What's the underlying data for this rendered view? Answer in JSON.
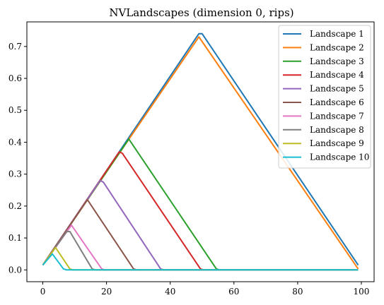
{
  "chart_data": {
    "type": "line",
    "title": "NVLandscapes (dimension 0, rips)",
    "xlabel": "",
    "ylabel": "",
    "xlim": [
      -5,
      104
    ],
    "ylim": [
      -0.037,
      0.777
    ],
    "xticks": [
      0,
      20,
      40,
      60,
      80,
      100
    ],
    "yticks": [
      0.0,
      0.1,
      0.2,
      0.3,
      0.4,
      0.5,
      0.6,
      0.7
    ],
    "ytick_labels": [
      "0.0",
      "0.1",
      "0.2",
      "0.3",
      "0.4",
      "0.5",
      "0.6",
      "0.7"
    ],
    "grid": false,
    "legend_position": "top-right",
    "series": [
      {
        "name": "Landscape 1",
        "color": "#1f77b4",
        "x": [
          0,
          49,
          50,
          99
        ],
        "y": [
          0.015,
          0.74,
          0.74,
          0.015
        ]
      },
      {
        "name": "Landscape 2",
        "color": "#ff7f0e",
        "x": [
          0,
          49,
          99
        ],
        "y": [
          0.015,
          0.73,
          0.003
        ]
      },
      {
        "name": "Landscape 3",
        "color": "#2ca02c",
        "x": [
          0,
          27,
          54.5,
          55.5,
          99
        ],
        "y": [
          0.015,
          0.41,
          0.003,
          0.0,
          0.0
        ]
      },
      {
        "name": "Landscape 4",
        "color": "#d62728",
        "x": [
          0,
          24,
          25,
          49.5,
          50.5,
          99
        ],
        "y": [
          0.015,
          0.37,
          0.365,
          0.003,
          0.0,
          0.0
        ]
      },
      {
        "name": "Landscape 5",
        "color": "#9467bd",
        "x": [
          0,
          18,
          19,
          37,
          38,
          99
        ],
        "y": [
          0.015,
          0.28,
          0.275,
          0.003,
          0.0,
          0.0
        ]
      },
      {
        "name": "Landscape 6",
        "color": "#8c564b",
        "x": [
          0,
          14,
          28.5,
          29.5,
          99
        ],
        "y": [
          0.015,
          0.22,
          0.003,
          0.0,
          0.0
        ]
      },
      {
        "name": "Landscape 7",
        "color": "#e377c2",
        "x": [
          0,
          9,
          18.5,
          19.5,
          99
        ],
        "y": [
          0.015,
          0.14,
          0.003,
          0.0,
          0.0
        ]
      },
      {
        "name": "Landscape 8",
        "color": "#7f7f7f",
        "x": [
          0,
          7.5,
          8.5,
          15.5,
          16.5,
          99
        ],
        "y": [
          0.015,
          0.12,
          0.12,
          0.003,
          0.0,
          0.0
        ]
      },
      {
        "name": "Landscape 9",
        "color": "#bcbd22",
        "x": [
          0,
          4,
          8.5,
          9.5,
          99
        ],
        "y": [
          0.015,
          0.07,
          0.003,
          0.0,
          0.0
        ]
      },
      {
        "name": "Landscape 10",
        "color": "#17becf",
        "x": [
          0,
          3,
          6.5,
          7.5,
          99
        ],
        "y": [
          0.015,
          0.05,
          0.003,
          0.0,
          0.0
        ]
      }
    ]
  }
}
